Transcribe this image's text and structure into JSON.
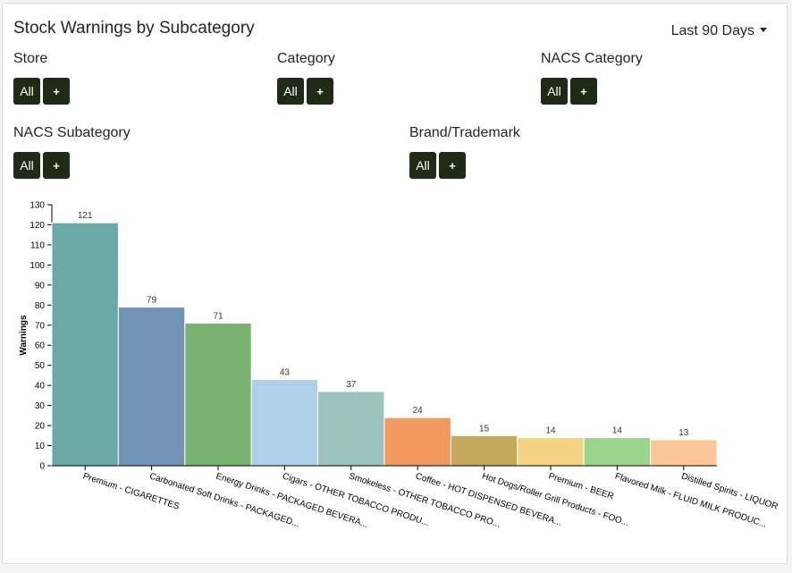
{
  "header": {
    "title": "Stock Warnings by Subcategory",
    "range_label": "Last 90 Days"
  },
  "filters": [
    {
      "label": "Store",
      "all_label": "All",
      "add_label": "+"
    },
    {
      "label": "Category",
      "all_label": "All",
      "add_label": "+"
    },
    {
      "label": "NACS Category",
      "all_label": "All",
      "add_label": "+"
    },
    {
      "label": "NACS Subategory",
      "all_label": "All",
      "add_label": "+"
    },
    {
      "label": "Brand/Trademark",
      "all_label": "All",
      "add_label": "+"
    }
  ],
  "chart_data": {
    "type": "bar",
    "categories": [
      "Premium - CIGARETTES",
      "Carbonated Soft Drinks - PACKAGED...",
      "Energy Drinks - PACKAGED BEVERA...",
      "Cigars - OTHER TOBACCO PRODU...",
      "Smokeless - OTHER TOBACCO PRO...",
      "Coffee - HOT DISPENSED BEVERA...",
      "Hot Dogs/Roller Grill Products - FOO...",
      "Premium - BEER",
      "Flavored Milk - FLUID MILK PRODUC...",
      "Distilled Spirits - LIQUOR"
    ],
    "values": [
      121,
      79,
      71,
      43,
      37,
      24,
      15,
      14,
      14,
      13
    ],
    "colors": [
      "#6aa9a6",
      "#7093b6",
      "#7ab272",
      "#aed0e8",
      "#9bc4bf",
      "#f19a5f",
      "#c4a95e",
      "#f3d283",
      "#9cd48e",
      "#fcc797"
    ],
    "ylabel": "Warnings",
    "xlabel": "",
    "ylim": [
      0,
      130
    ],
    "yticks": [
      0,
      10,
      20,
      30,
      40,
      50,
      60,
      70,
      80,
      90,
      100,
      110,
      120,
      130
    ],
    "data_labels": true,
    "grid": false,
    "legend": "none"
  }
}
